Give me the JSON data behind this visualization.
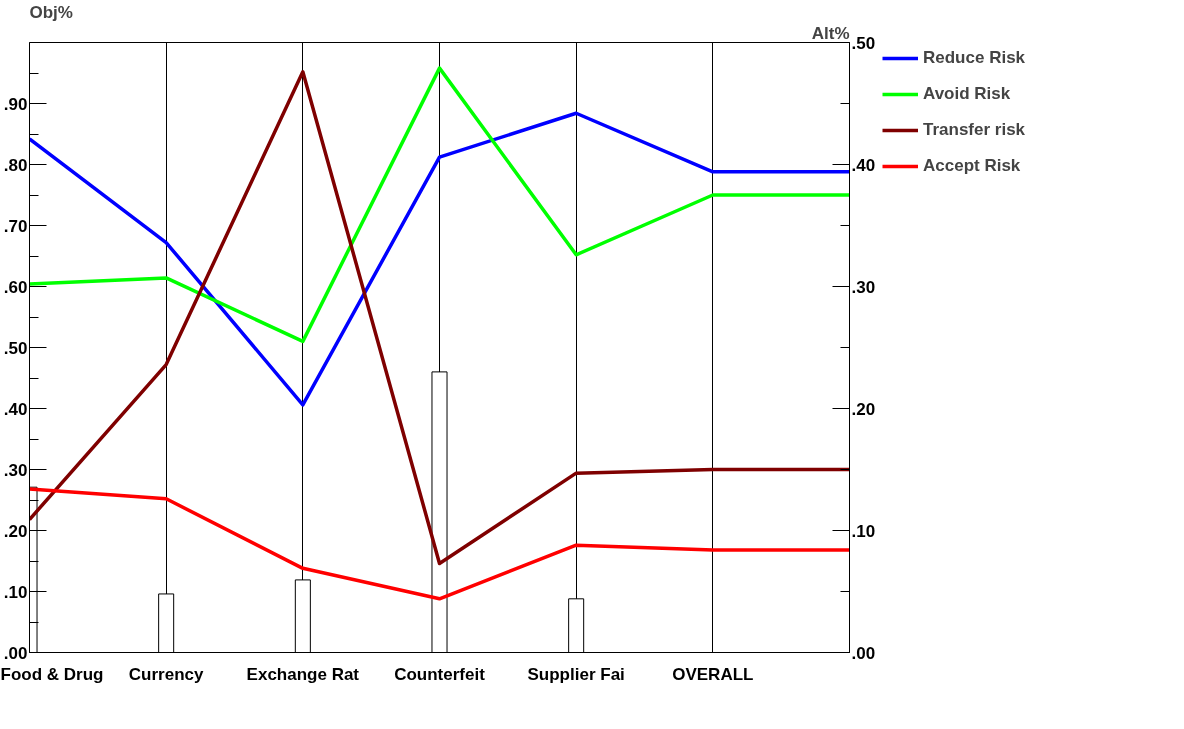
{
  "chart_data": {
    "type": "line",
    "ylabel": "Obj%",
    "y2label": "Alt%",
    "categories": [
      "Food & Drug",
      "Currency",
      "Exchange Rat",
      "Counterfeit",
      "Supplier Fai",
      "OVERALL",
      null
    ],
    "ylim": [
      0,
      1
    ],
    "yticks": [
      {
        "value": 0,
        "label": ".00"
      },
      {
        "value": 0.05,
        "label": null
      },
      {
        "value": 0.1,
        "label": ".10"
      },
      {
        "value": 0.15,
        "label": null
      },
      {
        "value": 0.2,
        "label": ".20"
      },
      {
        "value": 0.25,
        "label": null
      },
      {
        "value": 0.3,
        "label": ".30"
      },
      {
        "value": 0.35,
        "label": null
      },
      {
        "value": 0.4,
        "label": ".40"
      },
      {
        "value": 0.45,
        "label": null
      },
      {
        "value": 0.5,
        "label": ".50"
      },
      {
        "value": 0.55,
        "label": null
      },
      {
        "value": 0.6,
        "label": ".60"
      },
      {
        "value": 0.65,
        "label": null
      },
      {
        "value": 0.7,
        "label": ".70"
      },
      {
        "value": 0.75,
        "label": null
      },
      {
        "value": 0.8,
        "label": ".80"
      },
      {
        "value": 0.85,
        "label": null
      },
      {
        "value": 0.9,
        "label": ".90"
      },
      {
        "value": 0.95,
        "label": null
      }
    ],
    "y2lim": [
      0,
      0.5
    ],
    "y2ticks": [
      {
        "value": 0,
        "label": ".00"
      },
      {
        "value": 0.05,
        "label": null
      },
      {
        "value": 0.1,
        "label": ".10"
      },
      {
        "value": 0.15,
        "label": null
      },
      {
        "value": 0.2,
        "label": ".20"
      },
      {
        "value": 0.25,
        "label": null
      },
      {
        "value": 0.3,
        "label": ".30"
      },
      {
        "value": 0.35,
        "label": null
      },
      {
        "value": 0.4,
        "label": ".40"
      },
      {
        "value": 0.45,
        "label": null
      },
      {
        "value": 0.5,
        "label": ".50"
      }
    ],
    "grid": "x",
    "legend": "right",
    "series": [
      {
        "type": "bar",
        "color": "#ffffff",
        "values": [
          0.271,
          0.096,
          0.119,
          0.46,
          0.088,
          null,
          null
        ]
      },
      {
        "name": "Reduce Risk",
        "color": "#0000ff",
        "axis": "y2",
        "values": [
          0.421,
          0.336,
          0.203,
          0.406,
          0.442,
          0.394,
          0.394
        ]
      },
      {
        "name": "Avoid Risk",
        "color": "#00ff00",
        "axis": "y2",
        "values": [
          0.302,
          0.307,
          0.255,
          0.479,
          0.326,
          0.375,
          0.375
        ]
      },
      {
        "name": "Transfer risk",
        "color": "#7f0000",
        "axis": "y2",
        "values": [
          0.109,
          0.236,
          0.476,
          0.073,
          0.147,
          0.15,
          0.15
        ]
      },
      {
        "name": "Accept Risk",
        "color": "#ff0000",
        "axis": "y2",
        "values": [
          0.134,
          0.126,
          0.069,
          0.044,
          0.088,
          0.084,
          0.084
        ]
      }
    ]
  }
}
